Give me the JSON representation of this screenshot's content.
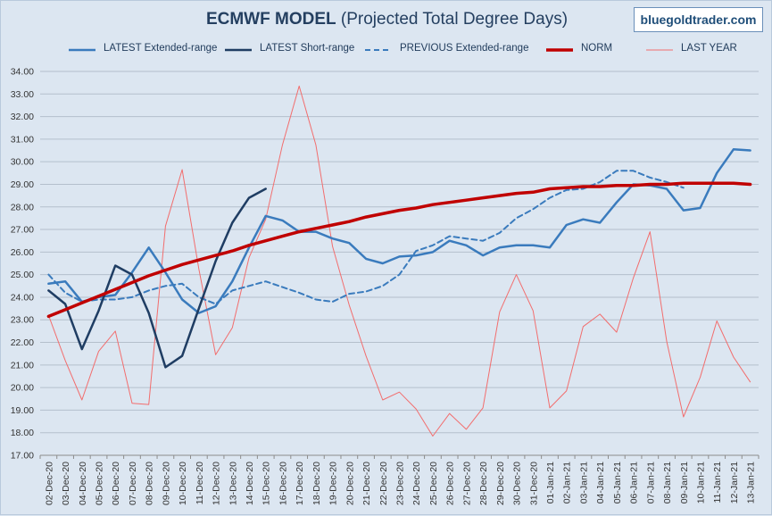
{
  "title_bold": "ECMWF MODEL",
  "title_rest": " (Projected Total Degree Days)",
  "watermark": "bluegoldtrader.com",
  "chart_data": {
    "type": "line",
    "title": "ECMWF MODEL (Projected Total Degree Days)",
    "ylim": [
      17,
      34
    ],
    "y_ticks": [
      "17.00",
      "18.00",
      "19.00",
      "20.00",
      "21.00",
      "22.00",
      "23.00",
      "24.00",
      "25.00",
      "26.00",
      "27.00",
      "28.00",
      "29.00",
      "30.00",
      "31.00",
      "32.00",
      "33.00",
      "34.00"
    ],
    "grid": true,
    "legend_placement": "top",
    "categories": [
      "02-Dec-20",
      "03-Dec-20",
      "04-Dec-20",
      "05-Dec-20",
      "06-Dec-20",
      "07-Dec-20",
      "08-Dec-20",
      "09-Dec-20",
      "10-Dec-20",
      "11-Dec-20",
      "12-Dec-20",
      "13-Dec-20",
      "14-Dec-20",
      "15-Dec-20",
      "16-Dec-20",
      "17-Dec-20",
      "18-Dec-20",
      "19-Dec-20",
      "20-Dec-20",
      "21-Dec-20",
      "22-Dec-20",
      "23-Dec-20",
      "24-Dec-20",
      "25-Dec-20",
      "26-Dec-20",
      "27-Dec-20",
      "28-Dec-20",
      "29-Dec-20",
      "30-Dec-20",
      "31-Dec-20",
      "01-Jan-21",
      "02-Jan-21",
      "03-Jan-21",
      "04-Jan-21",
      "05-Jan-21",
      "06-Jan-21",
      "07-Jan-21",
      "08-Jan-21",
      "09-Jan-21",
      "10-Jan-21",
      "11-Jan-21",
      "12-Jan-21",
      "13-Jan-21"
    ],
    "series": [
      {
        "name": "LATEST Extended-range",
        "color": "#3a7bbd",
        "width": 2.5,
        "dash": "",
        "values": [
          24.6,
          24.7,
          23.8,
          24.0,
          24.1,
          25.1,
          26.2,
          25.1,
          23.9,
          23.3,
          23.6,
          24.7,
          26.2,
          27.6,
          27.4,
          26.9,
          26.9,
          26.6,
          26.4,
          25.7,
          25.5,
          25.8,
          25.85,
          26.0,
          26.5,
          26.3,
          25.85,
          26.2,
          26.3,
          26.3,
          26.2,
          27.2,
          27.45,
          27.3,
          28.2,
          29.0,
          28.95,
          28.8,
          27.85,
          27.95,
          29.5,
          30.55,
          30.5
        ]
      },
      {
        "name": "LATEST Short-range",
        "color": "#1f3d63",
        "width": 2.5,
        "dash": "",
        "values": [
          24.3,
          23.7,
          21.7,
          23.4,
          25.4,
          25.0,
          23.3,
          20.9,
          21.4,
          23.5,
          25.6,
          27.3,
          28.4,
          28.8,
          null,
          null,
          null,
          null,
          null,
          null,
          null,
          null,
          null,
          null,
          null,
          null,
          null,
          null,
          null,
          null,
          null,
          null,
          null,
          null,
          null,
          null,
          null,
          null,
          null,
          null,
          null,
          null,
          null
        ]
      },
      {
        "name": "PREVIOUS Extended-range",
        "color": "#3a7bbd",
        "width": 2,
        "dash": "6,4",
        "values": [
          25.0,
          24.2,
          23.8,
          23.9,
          23.9,
          24.0,
          24.3,
          24.5,
          24.6,
          24.0,
          23.7,
          24.3,
          24.5,
          24.7,
          24.45,
          24.2,
          23.9,
          23.8,
          24.15,
          24.25,
          24.5,
          25.0,
          26.05,
          26.3,
          26.7,
          26.6,
          26.5,
          26.85,
          27.5,
          27.9,
          28.4,
          28.75,
          28.8,
          29.1,
          29.6,
          29.6,
          29.3,
          29.1,
          28.85,
          null,
          null,
          null,
          null
        ]
      },
      {
        "name": "NORM",
        "color": "#c00000",
        "width": 3.5,
        "dash": "",
        "values": [
          23.15,
          23.45,
          23.75,
          24.05,
          24.35,
          24.65,
          24.95,
          25.2,
          25.45,
          25.65,
          25.85,
          26.05,
          26.3,
          26.5,
          26.7,
          26.9,
          27.05,
          27.2,
          27.35,
          27.55,
          27.7,
          27.85,
          27.95,
          28.1,
          28.2,
          28.3,
          28.4,
          28.5,
          28.6,
          28.65,
          28.8,
          28.85,
          28.9,
          28.9,
          28.95,
          28.95,
          29.0,
          29.0,
          29.05,
          29.05,
          29.05,
          29.05,
          29.0
        ]
      },
      {
        "name": "LAST YEAR",
        "color": "#f26d6d",
        "width": 1,
        "dash": "",
        "values": [
          23.2,
          21.2,
          19.45,
          21.6,
          22.5,
          19.3,
          19.25,
          27.15,
          29.65,
          25.25,
          21.45,
          22.65,
          25.75,
          27.45,
          30.75,
          33.35,
          30.75,
          26.25,
          23.65,
          21.4,
          19.45,
          19.8,
          19.05,
          17.85,
          18.85,
          18.15,
          19.1,
          23.35,
          25.0,
          23.4,
          19.1,
          19.85,
          22.7,
          23.25,
          22.45,
          24.85,
          26.9,
          22.05,
          18.7,
          20.45,
          22.95,
          21.35,
          20.25
        ]
      }
    ]
  }
}
